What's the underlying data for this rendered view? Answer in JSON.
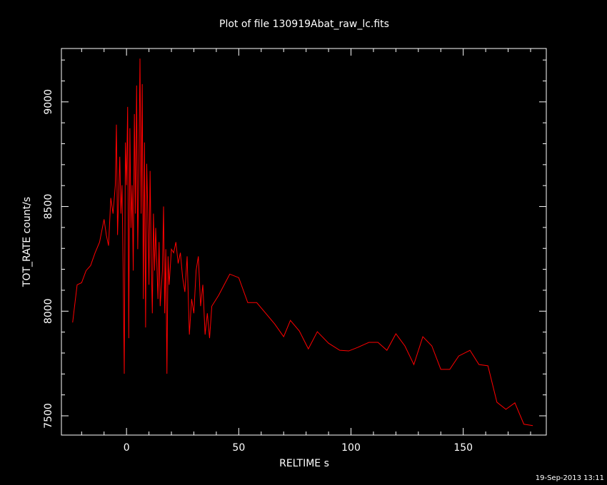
{
  "chart_data": {
    "type": "line",
    "title": "Plot of file 130919Abat_raw_lc.fits",
    "xlabel": "RELTIME  s",
    "ylabel": "TOT_RATE  count/s",
    "footer": "19-Sep-2013 13:11",
    "x": [
      -24,
      -22,
      -20,
      -18,
      -16,
      -14,
      -12,
      -10,
      -9,
      -8,
      -7,
      -6,
      -5,
      -4.5,
      -4,
      -3,
      -2.5,
      -2,
      -1.5,
      -1,
      -0.5,
      0,
      0.5,
      1,
      1.5,
      2,
      2.5,
      3,
      3.5,
      4,
      4.5,
      5,
      5.5,
      6,
      6.5,
      7,
      7.5,
      8,
      8.5,
      9,
      9.5,
      10,
      10.5,
      11,
      11.5,
      12,
      12.5,
      13,
      14,
      14.5,
      15,
      16,
      16.5,
      17,
      17.5,
      18,
      18.5,
      19,
      20,
      21,
      22,
      23,
      24,
      25,
      26,
      27,
      28,
      29,
      30,
      31,
      32,
      33,
      34,
      35,
      36,
      37,
      38,
      41,
      46,
      50,
      54,
      58,
      62,
      66,
      70,
      73,
      77,
      81,
      85,
      90,
      95,
      99,
      103,
      108,
      112,
      116,
      120,
      124,
      128,
      132,
      136,
      140,
      144,
      148,
      153,
      157,
      161,
      165,
      169,
      173,
      177,
      181
    ],
    "series": [
      {
        "name": "TOT_RATE",
        "color": "#ff0000",
        "values": [
          7946,
          8126,
          8136,
          8194,
          8218,
          8279,
          8330,
          8439,
          8364,
          8313,
          8541,
          8466,
          8602,
          8891,
          8364,
          8738,
          8466,
          8602,
          8194,
          7701,
          8806,
          8602,
          8976,
          7871,
          8874,
          8398,
          8602,
          8194,
          8942,
          8466,
          9078,
          8296,
          8670,
          9207,
          8466,
          9085,
          8058,
          8806,
          7922,
          8704,
          8466,
          8126,
          8670,
          8262,
          7990,
          8466,
          8194,
          8398,
          8058,
          8330,
          8024,
          8194,
          8500,
          7990,
          8296,
          7701,
          8262,
          8126,
          8296,
          8279,
          8330,
          8228,
          8279,
          8160,
          8092,
          8262,
          7888,
          8058,
          7990,
          8194,
          8262,
          8024,
          8126,
          7888,
          7990,
          7871,
          8024,
          8075,
          8177,
          8160,
          8041,
          8041,
          7990,
          7939,
          7878,
          7956,
          7905,
          7820,
          7902,
          7847,
          7813,
          7810,
          7827,
          7851,
          7851,
          7813,
          7892,
          7834,
          7745,
          7878,
          7834,
          7722,
          7722,
          7786,
          7813,
          7745,
          7739,
          7565,
          7531,
          7562,
          7460,
          7453
        ]
      }
    ],
    "xlim": [
      -29,
      187
    ],
    "ylim": [
      7408,
      9255
    ],
    "xticks": [
      0,
      50,
      100,
      150
    ],
    "yticks": [
      7500,
      8000,
      8500,
      9000
    ],
    "xminorticks": [
      -20,
      -10,
      10,
      20,
      30,
      40,
      60,
      70,
      80,
      90,
      110,
      120,
      130,
      140,
      160,
      170,
      180
    ],
    "yminorticks": [
      7600,
      7700,
      7800,
      7900,
      8100,
      8200,
      8300,
      8400,
      8600,
      8700,
      8800,
      8900,
      9100,
      9200
    ]
  }
}
